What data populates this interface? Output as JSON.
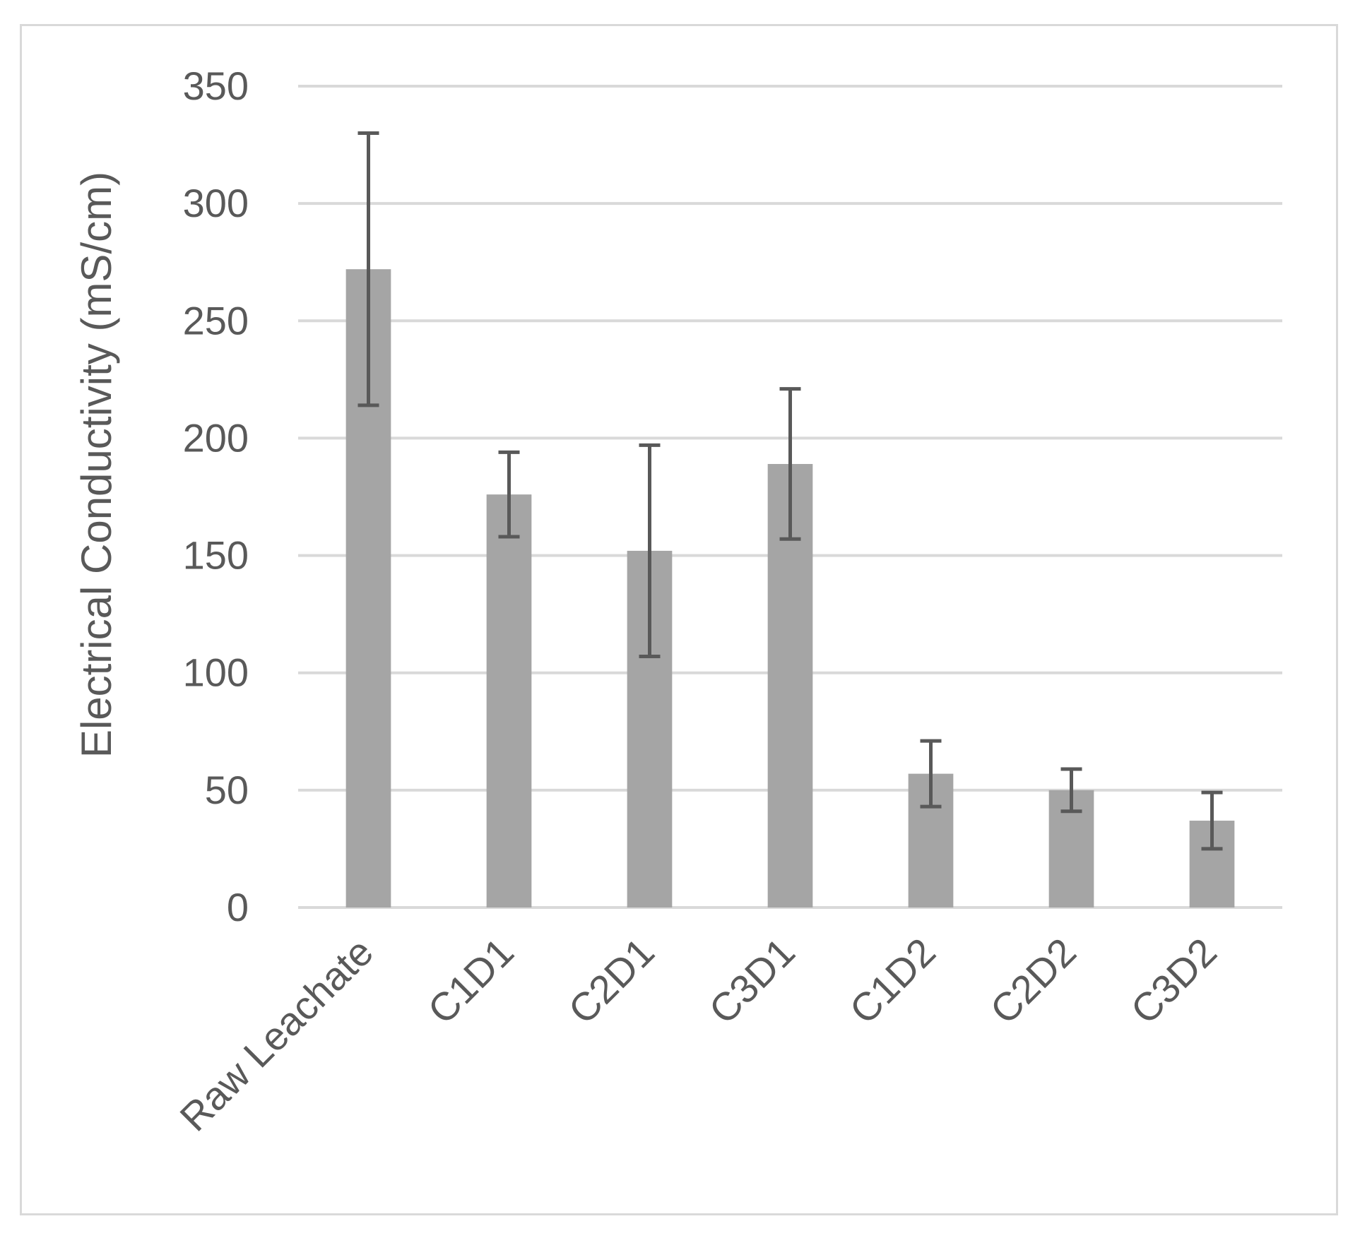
{
  "chart_data": {
    "type": "bar",
    "title": "",
    "xlabel": "",
    "ylabel": "Electrical Conductivity  (mS/cm)",
    "ylim": [
      0,
      350
    ],
    "yticks": [
      0,
      50,
      100,
      150,
      200,
      250,
      300,
      350
    ],
    "grid": true,
    "legend": "none",
    "categories": [
      "Raw Leachate",
      "C1D1",
      "C2D1",
      "C3D1",
      "C1D2",
      "C2D2",
      "C3D2"
    ],
    "values": [
      272,
      176,
      152,
      189,
      57,
      50,
      37
    ],
    "error_lower": [
      58,
      18,
      45,
      32,
      14,
      9,
      12
    ],
    "error_upper": [
      58,
      18,
      45,
      32,
      14,
      9,
      12
    ],
    "colors": {
      "bar": "#a5a5a5",
      "error_bar": "#595959",
      "grid": "#d9d9d9",
      "text": "#595959"
    }
  }
}
